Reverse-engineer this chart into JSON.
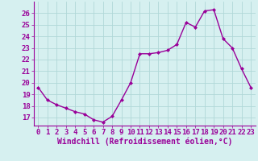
{
  "x": [
    0,
    1,
    2,
    3,
    4,
    5,
    6,
    7,
    8,
    9,
    10,
    11,
    12,
    13,
    14,
    15,
    16,
    17,
    18,
    19,
    20,
    21,
    22,
    23
  ],
  "y": [
    19.6,
    18.5,
    18.1,
    17.8,
    17.5,
    17.3,
    16.8,
    16.6,
    17.1,
    18.5,
    20.0,
    22.5,
    22.5,
    22.6,
    22.8,
    23.3,
    25.2,
    24.8,
    26.2,
    26.3,
    23.8,
    23.0,
    21.2,
    19.6
  ],
  "line_color": "#990099",
  "marker": "D",
  "markersize": 2.0,
  "bg_color": "#d6f0f0",
  "grid_color": "#b0d8d8",
  "yticks": [
    17,
    18,
    19,
    20,
    21,
    22,
    23,
    24,
    25,
    26
  ],
  "xlabel": "Windchill (Refroidissement éolien,°C)",
  "font_color": "#990099",
  "ylim": [
    16.3,
    27.0
  ],
  "xlim": [
    -0.5,
    23.5
  ],
  "tick_fontsize": 6.5,
  "label_fontsize": 7.0,
  "linewidth": 1.0
}
